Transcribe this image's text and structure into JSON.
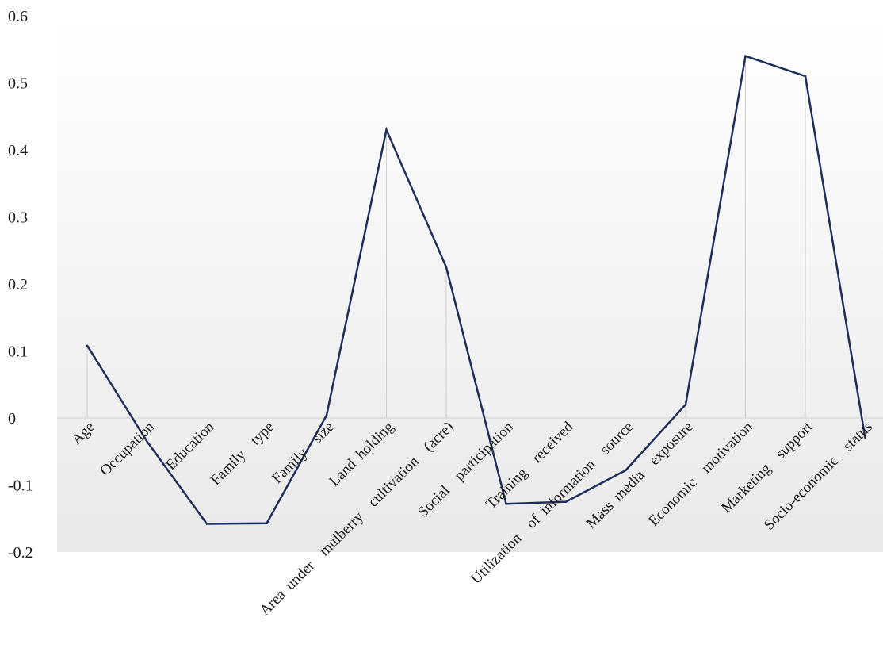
{
  "chart_data": {
    "type": "line",
    "title": "",
    "xlabel": "",
    "ylabel": "",
    "ylim": [
      -0.2,
      0.6
    ],
    "yticks": [
      "0.6",
      "0.5",
      "0.4",
      "0.3",
      "0.2",
      "0.1",
      "0",
      "-0.1",
      "-0.2"
    ],
    "ytick_values": [
      0.6,
      0.5,
      0.4,
      0.3,
      0.2,
      0.1,
      0,
      -0.1,
      -0.2
    ],
    "grid": "vertical lines at categories",
    "legend": "none",
    "categories": [
      "Age",
      "Occupation",
      "Education",
      "Family  type",
      "Family  size",
      "Land holding",
      "Area under  mulberry  cultivation  (acre)",
      "Social  participation",
      "Training  received",
      "Utilization  of information  source",
      "Mass media  exposure",
      "Economic  motivation",
      "Marketing  support",
      "Socio-economic  status"
    ],
    "series": [
      {
        "color": "#1f2d5a",
        "values": [
          0.108,
          -0.035,
          -0.158,
          -0.157,
          0.004,
          0.43,
          0.225,
          -0.128,
          -0.125,
          -0.078,
          0.02,
          0.54,
          0.51,
          -0.03
        ]
      }
    ],
    "colors": {
      "line": "#1f2d5a",
      "plot_bg_top": "#ffffff",
      "plot_bg_bottom": "#e9e9e9",
      "grid": "#cfcfcf"
    }
  }
}
